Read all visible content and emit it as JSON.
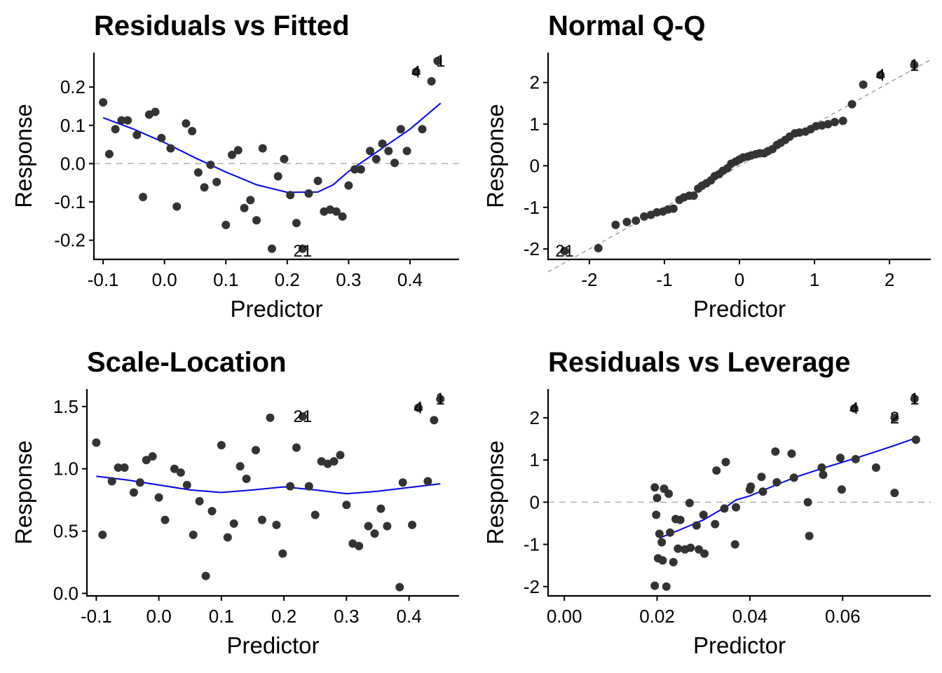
{
  "colors": {
    "points": "#333333",
    "smooth": "#0000ee",
    "ref": "#b0b0b0",
    "diag": "#8a8a8a"
  },
  "chart_data": [
    {
      "type": "scatter",
      "title": "Residuals vs Fitted",
      "xlabel": "Predictor",
      "ylabel": "Response",
      "xlim": [
        -0.115,
        0.48
      ],
      "ylim": [
        -0.25,
        0.29
      ],
      "xticks": [
        -0.1,
        0.0,
        0.1,
        0.2,
        0.3,
        0.4
      ],
      "xtick_labels": [
        "-0.1",
        "0.0",
        "0.1",
        "0.2",
        "0.3",
        "0.4"
      ],
      "yticks": [
        -0.2,
        -0.1,
        0.0,
        0.1,
        0.2
      ],
      "ytick_labels": [
        "-0.2",
        "-0.1",
        "0.0",
        "0.1",
        "0.2"
      ],
      "grid": false,
      "hline": 0,
      "points": [
        [
          -0.1,
          0.16
        ],
        [
          -0.09,
          0.025
        ],
        [
          -0.08,
          0.09
        ],
        [
          -0.07,
          0.113
        ],
        [
          -0.06,
          0.113
        ],
        [
          -0.045,
          0.075
        ],
        [
          -0.035,
          -0.087
        ],
        [
          -0.025,
          0.128
        ],
        [
          -0.015,
          0.135
        ],
        [
          -0.005,
          0.067
        ],
        [
          0.01,
          0.04
        ],
        [
          0.02,
          -0.112
        ],
        [
          0.035,
          0.105
        ],
        [
          0.045,
          0.085
        ],
        [
          0.055,
          -0.023
        ],
        [
          0.065,
          -0.062
        ],
        [
          0.075,
          -0.003
        ],
        [
          0.085,
          -0.048
        ],
        [
          0.1,
          -0.16
        ],
        [
          0.11,
          0.023
        ],
        [
          0.12,
          0.035
        ],
        [
          0.13,
          -0.116
        ],
        [
          0.14,
          -0.095
        ],
        [
          0.15,
          -0.148
        ],
        [
          0.16,
          0.04
        ],
        [
          0.175,
          -0.222
        ],
        [
          0.185,
          -0.033
        ],
        [
          0.195,
          0.012
        ],
        [
          0.205,
          -0.082
        ],
        [
          0.215,
          -0.155
        ],
        [
          0.225,
          -0.222
        ],
        [
          0.235,
          -0.078
        ],
        [
          0.25,
          -0.045
        ],
        [
          0.26,
          -0.125
        ],
        [
          0.27,
          -0.12
        ],
        [
          0.28,
          -0.125
        ],
        [
          0.29,
          -0.138
        ],
        [
          0.3,
          -0.057
        ],
        [
          0.31,
          -0.015
        ],
        [
          0.32,
          -0.015
        ],
        [
          0.335,
          0.033
        ],
        [
          0.345,
          0.012
        ],
        [
          0.355,
          0.052
        ],
        [
          0.365,
          0.033
        ],
        [
          0.375,
          0.002
        ],
        [
          0.385,
          0.09
        ],
        [
          0.395,
          0.033
        ],
        [
          0.41,
          0.24
        ],
        [
          0.42,
          0.09
        ],
        [
          0.435,
          0.215
        ],
        [
          0.445,
          0.268
        ]
      ],
      "labels": [
        {
          "text": "4",
          "x": 0.41,
          "y": 0.24
        },
        {
          "text": "1",
          "x": 0.45,
          "y": 0.268
        },
        {
          "text": "21",
          "x": 0.225,
          "y": -0.228
        }
      ],
      "smooth": [
        [
          -0.1,
          0.12
        ],
        [
          -0.05,
          0.09
        ],
        [
          0.0,
          0.055
        ],
        [
          0.05,
          0.015
        ],
        [
          0.1,
          -0.022
        ],
        [
          0.15,
          -0.055
        ],
        [
          0.2,
          -0.075
        ],
        [
          0.25,
          -0.074
        ],
        [
          0.275,
          -0.055
        ],
        [
          0.3,
          -0.02
        ],
        [
          0.35,
          0.035
        ],
        [
          0.4,
          0.09
        ],
        [
          0.45,
          0.158
        ]
      ]
    },
    {
      "type": "scatter",
      "title": "Normal Q-Q",
      "xlabel": "Predictor",
      "ylabel": "Response",
      "xlim": [
        -2.55,
        2.55
      ],
      "ylim": [
        -2.25,
        2.72
      ],
      "xticks": [
        -2,
        -1,
        0,
        1,
        2
      ],
      "xtick_labels": [
        "-2",
        "-1",
        "0",
        "1",
        "2"
      ],
      "yticks": [
        -2,
        -1,
        0,
        1,
        2
      ],
      "ytick_labels": [
        "-2",
        "-1",
        "0",
        "1",
        "2"
      ],
      "grid": false,
      "diagonal": [
        [
          -2.55,
          -2.55
        ],
        [
          2.55,
          2.55
        ]
      ],
      "points": [
        [
          -2.33,
          -2.05
        ],
        [
          -1.88,
          -1.98
        ],
        [
          -1.65,
          -1.42
        ],
        [
          -1.5,
          -1.35
        ],
        [
          -1.38,
          -1.32
        ],
        [
          -1.27,
          -1.22
        ],
        [
          -1.18,
          -1.18
        ],
        [
          -1.1,
          -1.12
        ],
        [
          -1.02,
          -1.1
        ],
        [
          -0.95,
          -1.05
        ],
        [
          -0.88,
          -1.03
        ],
        [
          -0.8,
          -0.82
        ],
        [
          -0.74,
          -0.76
        ],
        [
          -0.67,
          -0.72
        ],
        [
          -0.61,
          -0.72
        ],
        [
          -0.55,
          -0.55
        ],
        [
          -0.5,
          -0.48
        ],
        [
          -0.44,
          -0.42
        ],
        [
          -0.38,
          -0.35
        ],
        [
          -0.33,
          -0.25
        ],
        [
          -0.27,
          -0.2
        ],
        [
          -0.22,
          -0.12
        ],
        [
          -0.16,
          -0.06
        ],
        [
          -0.11,
          0.05
        ],
        [
          -0.05,
          0.1
        ],
        [
          0.0,
          0.15
        ],
        [
          0.05,
          0.2
        ],
        [
          0.11,
          0.22
        ],
        [
          0.16,
          0.25
        ],
        [
          0.22,
          0.28
        ],
        [
          0.27,
          0.3
        ],
        [
          0.33,
          0.3
        ],
        [
          0.38,
          0.35
        ],
        [
          0.44,
          0.4
        ],
        [
          0.5,
          0.5
        ],
        [
          0.55,
          0.55
        ],
        [
          0.61,
          0.62
        ],
        [
          0.67,
          0.7
        ],
        [
          0.74,
          0.78
        ],
        [
          0.8,
          0.8
        ],
        [
          0.88,
          0.82
        ],
        [
          0.95,
          0.88
        ],
        [
          1.02,
          0.95
        ],
        [
          1.1,
          0.97
        ],
        [
          1.18,
          1.0
        ],
        [
          1.27,
          1.05
        ],
        [
          1.38,
          1.08
        ],
        [
          1.5,
          1.48
        ],
        [
          1.65,
          1.95
        ],
        [
          1.88,
          2.18
        ],
        [
          2.33,
          2.42
        ]
      ],
      "labels": [
        {
          "text": "4",
          "x": 1.88,
          "y": 2.18
        },
        {
          "text": "1",
          "x": 2.33,
          "y": 2.42
        },
        {
          "text": "21",
          "x": -2.33,
          "y": -2.05
        }
      ]
    },
    {
      "type": "scatter",
      "title": "Scale-Location",
      "xlabel": "Predictor",
      "ylabel": "Response",
      "xlim": [
        -0.115,
        0.48
      ],
      "ylim": [
        -0.02,
        1.64
      ],
      "xticks": [
        -0.1,
        0.0,
        0.1,
        0.2,
        0.3,
        0.4
      ],
      "xtick_labels": [
        "-0.1",
        "0.0",
        "0.1",
        "0.2",
        "0.3",
        "0.4"
      ],
      "yticks": [
        0.0,
        0.5,
        1.0,
        1.5
      ],
      "ytick_labels": [
        "0.0",
        "0.5",
        "1.0",
        "1.5"
      ],
      "grid": false,
      "points": [
        [
          -0.1,
          1.21
        ],
        [
          -0.09,
          0.47
        ],
        [
          -0.075,
          0.9
        ],
        [
          -0.065,
          1.01
        ],
        [
          -0.055,
          1.01
        ],
        [
          -0.04,
          0.81
        ],
        [
          -0.03,
          0.89
        ],
        [
          -0.02,
          1.07
        ],
        [
          -0.01,
          1.1
        ],
        [
          0.0,
          0.77
        ],
        [
          0.01,
          0.59
        ],
        [
          0.025,
          1.0
        ],
        [
          0.035,
          0.97
        ],
        [
          0.045,
          0.87
        ],
        [
          0.055,
          0.47
        ],
        [
          0.065,
          0.74
        ],
        [
          0.075,
          0.14
        ],
        [
          0.085,
          0.66
        ],
        [
          0.1,
          1.19
        ],
        [
          0.11,
          0.45
        ],
        [
          0.12,
          0.56
        ],
        [
          0.13,
          1.02
        ],
        [
          0.14,
          0.92
        ],
        [
          0.155,
          1.15
        ],
        [
          0.165,
          0.59
        ],
        [
          0.178,
          1.41
        ],
        [
          0.188,
          0.55
        ],
        [
          0.198,
          0.32
        ],
        [
          0.21,
          0.86
        ],
        [
          0.22,
          1.17
        ],
        [
          0.23,
          1.42
        ],
        [
          0.24,
          0.86
        ],
        [
          0.25,
          0.63
        ],
        [
          0.26,
          1.06
        ],
        [
          0.27,
          1.04
        ],
        [
          0.28,
          1.06
        ],
        [
          0.29,
          1.11
        ],
        [
          0.3,
          0.71
        ],
        [
          0.31,
          0.4
        ],
        [
          0.32,
          0.38
        ],
        [
          0.335,
          0.54
        ],
        [
          0.345,
          0.48
        ],
        [
          0.355,
          0.68
        ],
        [
          0.365,
          0.54
        ],
        [
          0.385,
          0.05
        ],
        [
          0.39,
          0.89
        ],
        [
          0.405,
          0.55
        ],
        [
          0.415,
          1.49
        ],
        [
          0.43,
          0.9
        ],
        [
          0.44,
          1.39
        ],
        [
          0.45,
          1.56
        ]
      ],
      "labels": [
        {
          "text": "4",
          "x": 0.415,
          "y": 1.49
        },
        {
          "text": "1",
          "x": 0.45,
          "y": 1.56
        },
        {
          "text": "21",
          "x": 0.23,
          "y": 1.42
        }
      ],
      "smooth": [
        [
          -0.1,
          0.94
        ],
        [
          -0.05,
          0.91
        ],
        [
          0.0,
          0.87
        ],
        [
          0.05,
          0.83
        ],
        [
          0.1,
          0.81
        ],
        [
          0.15,
          0.83
        ],
        [
          0.2,
          0.855
        ],
        [
          0.25,
          0.83
        ],
        [
          0.3,
          0.8
        ],
        [
          0.35,
          0.82
        ],
        [
          0.4,
          0.85
        ],
        [
          0.45,
          0.88
        ]
      ]
    },
    {
      "type": "scatter",
      "title": "Residuals vs Leverage",
      "xlabel": "Predictor",
      "ylabel": "Response",
      "xlim": [
        -0.0035,
        0.079
      ],
      "ylim": [
        -2.22,
        2.68
      ],
      "xticks": [
        0.0,
        0.02,
        0.04,
        0.06
      ],
      "xtick_labels": [
        "0.00",
        "0.02",
        "0.04",
        "0.06"
      ],
      "yticks": [
        -2,
        -1,
        0,
        1,
        2
      ],
      "ytick_labels": [
        "-2",
        "-1",
        "0",
        "1",
        "2"
      ],
      "grid": false,
      "hline": 0,
      "points": [
        [
          0.0195,
          -1.98
        ],
        [
          0.0195,
          0.35
        ],
        [
          0.0198,
          -0.3
        ],
        [
          0.02,
          0.1
        ],
        [
          0.0202,
          -1.33
        ],
        [
          0.0205,
          -0.75
        ],
        [
          0.021,
          -0.95
        ],
        [
          0.0212,
          -1.38
        ],
        [
          0.0215,
          0.32
        ],
        [
          0.022,
          -2.0
        ],
        [
          0.0225,
          0.2
        ],
        [
          0.0228,
          -0.72
        ],
        [
          0.0235,
          -1.42
        ],
        [
          0.024,
          -0.4
        ],
        [
          0.0245,
          -1.1
        ],
        [
          0.025,
          -0.42
        ],
        [
          0.026,
          -1.12
        ],
        [
          0.027,
          -0.02
        ],
        [
          0.0272,
          -1.08
        ],
        [
          0.0285,
          -0.55
        ],
        [
          0.029,
          -1.12
        ],
        [
          0.03,
          -0.3
        ],
        [
          0.0302,
          -1.22
        ],
        [
          0.0325,
          -0.52
        ],
        [
          0.0328,
          0.75
        ],
        [
          0.0345,
          -0.15
        ],
        [
          0.0348,
          0.95
        ],
        [
          0.0368,
          -1.0
        ],
        [
          0.037,
          -0.12
        ],
        [
          0.04,
          0.3
        ],
        [
          0.0402,
          0.37
        ],
        [
          0.0425,
          0.6
        ],
        [
          0.0428,
          0.25
        ],
        [
          0.0455,
          1.2
        ],
        [
          0.0458,
          0.47
        ],
        [
          0.049,
          1.15
        ],
        [
          0.0495,
          0.58
        ],
        [
          0.0525,
          0.0
        ],
        [
          0.0528,
          -0.8
        ],
        [
          0.0555,
          0.82
        ],
        [
          0.0558,
          0.65
        ],
        [
          0.0595,
          1.05
        ],
        [
          0.0598,
          0.3
        ],
        [
          0.0625,
          2.22
        ],
        [
          0.0628,
          1.02
        ],
        [
          0.0672,
          0.82
        ],
        [
          0.0712,
          0.22
        ],
        [
          0.0712,
          2.0
        ],
        [
          0.0755,
          2.45
        ],
        [
          0.0758,
          1.48
        ]
      ],
      "labels": [
        {
          "text": "4",
          "x": 0.0625,
          "y": 2.22
        },
        {
          "text": "1",
          "x": 0.0755,
          "y": 2.45
        },
        {
          "text": "2",
          "x": 0.0712,
          "y": 2.0
        }
      ],
      "smooth": [
        [
          0.0205,
          -0.85
        ],
        [
          0.025,
          -0.65
        ],
        [
          0.03,
          -0.42
        ],
        [
          0.035,
          -0.1
        ],
        [
          0.037,
          0.05
        ],
        [
          0.04,
          0.15
        ],
        [
          0.045,
          0.38
        ],
        [
          0.05,
          0.6
        ],
        [
          0.055,
          0.78
        ],
        [
          0.06,
          0.95
        ],
        [
          0.065,
          1.12
        ],
        [
          0.07,
          1.3
        ],
        [
          0.0758,
          1.52
        ]
      ]
    }
  ]
}
